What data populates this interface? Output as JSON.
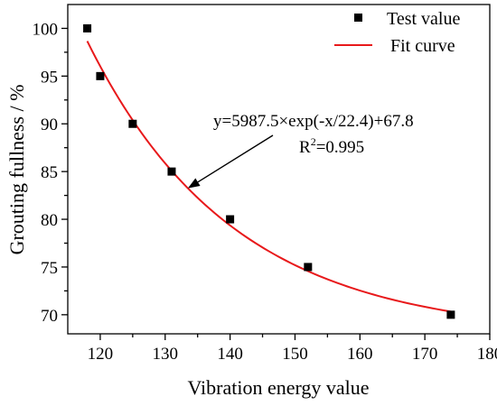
{
  "chart_data": {
    "type": "scatter",
    "xlabel": "Vibration energy value",
    "ylabel": "Grouting fullness / %",
    "xlim": [
      115,
      180
    ],
    "ylim": [
      68,
      102.5
    ],
    "xticks": [
      120,
      130,
      140,
      150,
      160,
      170,
      180
    ],
    "yticks": [
      70,
      75,
      80,
      85,
      90,
      95,
      100
    ],
    "grid": false,
    "legend_position": "top-right",
    "series": [
      {
        "name": "Test value",
        "kind": "scatter",
        "marker": "square",
        "color": "#000000",
        "x": [
          118,
          120,
          125,
          131,
          140,
          152,
          174
        ],
        "y": [
          100,
          95,
          90,
          85,
          80,
          75,
          70
        ]
      },
      {
        "name": "Fit curve",
        "kind": "line",
        "color": "#e8191b",
        "x_range": [
          118,
          174
        ],
        "model": {
          "a": 5987.5,
          "t": 22.4,
          "c": 67.8
        }
      }
    ],
    "annotation": {
      "equation": "y=5987.5×exp(-x/22.4)+67.8",
      "r2_label": "R",
      "r2_sup": "2",
      "r2_value": "=0.995",
      "arrow_to_x": 133.5
    }
  }
}
